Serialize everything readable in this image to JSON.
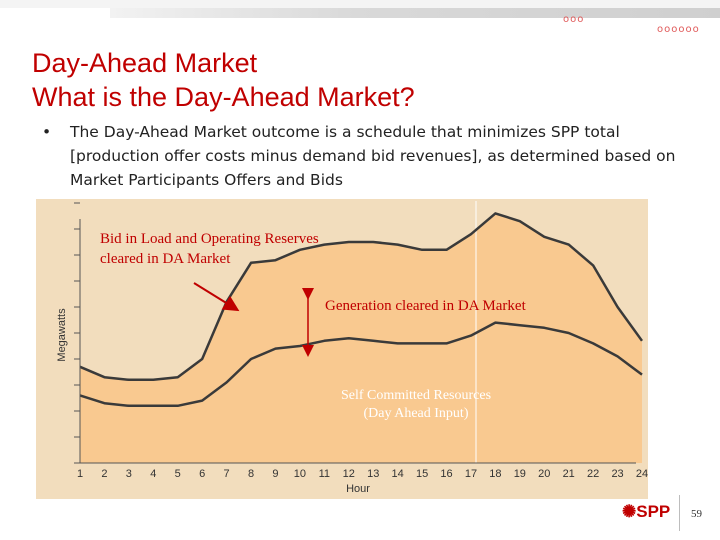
{
  "slide": {
    "title_line1": "Day-Ahead Market",
    "title_line2": "What is the Day-Ahead Market?",
    "bullet_symbol": "•",
    "bullet_text": "The Day-Ahead Market outcome is a schedule that minimizes SPP total [production offer costs minus demand bid revenues], as determined based on Market Participants Offers and Bids",
    "logo_text": "SPP",
    "page_number": "59",
    "decor_circles_1": "ooo",
    "decor_circles_2": "oooooo",
    "accent_color": "#c00000"
  },
  "chart_data": {
    "type": "area",
    "xlabel": "Hour",
    "ylabel": "Megawatts",
    "x": [
      1,
      2,
      3,
      4,
      5,
      6,
      7,
      8,
      9,
      10,
      11,
      12,
      13,
      14,
      15,
      16,
      17,
      18,
      19,
      20,
      21,
      22,
      23,
      24
    ],
    "xlim": [
      1,
      24
    ],
    "ylim": [
      0,
      10
    ],
    "grid": false,
    "series": [
      {
        "key": "bid_load",
        "values": [
          3.7,
          3.3,
          3.2,
          3.2,
          3.3,
          4.0,
          6.2,
          7.7,
          7.8,
          8.2,
          8.4,
          8.5,
          8.5,
          8.4,
          8.2,
          8.2,
          8.8,
          9.6,
          9.3,
          8.7,
          8.4,
          7.6,
          6.0,
          4.7
        ]
      },
      {
        "key": "generation",
        "values": [
          2.6,
          2.3,
          2.2,
          2.2,
          2.2,
          2.4,
          3.1,
          4.0,
          4.4,
          4.5,
          4.7,
          4.8,
          4.7,
          4.6,
          4.6,
          4.6,
          4.9,
          5.4,
          5.3,
          5.2,
          5.0,
          4.6,
          4.1,
          3.4
        ]
      }
    ],
    "annotations": {
      "bid_in_load_line1": "Bid in Load and Operating Reserves",
      "bid_in_load_line2": "cleared in DA Market",
      "generation": "Generation cleared in DA Market",
      "self_committed_line1": "Self Committed Resources",
      "self_committed_line2": "(Day Ahead Input)"
    },
    "colors": {
      "plot_background": "#f2ddbd",
      "fill": "#f9c990",
      "line": "#3a3a3a",
      "arrow": "#c00000",
      "annotation_text": "#c00000",
      "self_committed_text": "#ffffff"
    }
  }
}
